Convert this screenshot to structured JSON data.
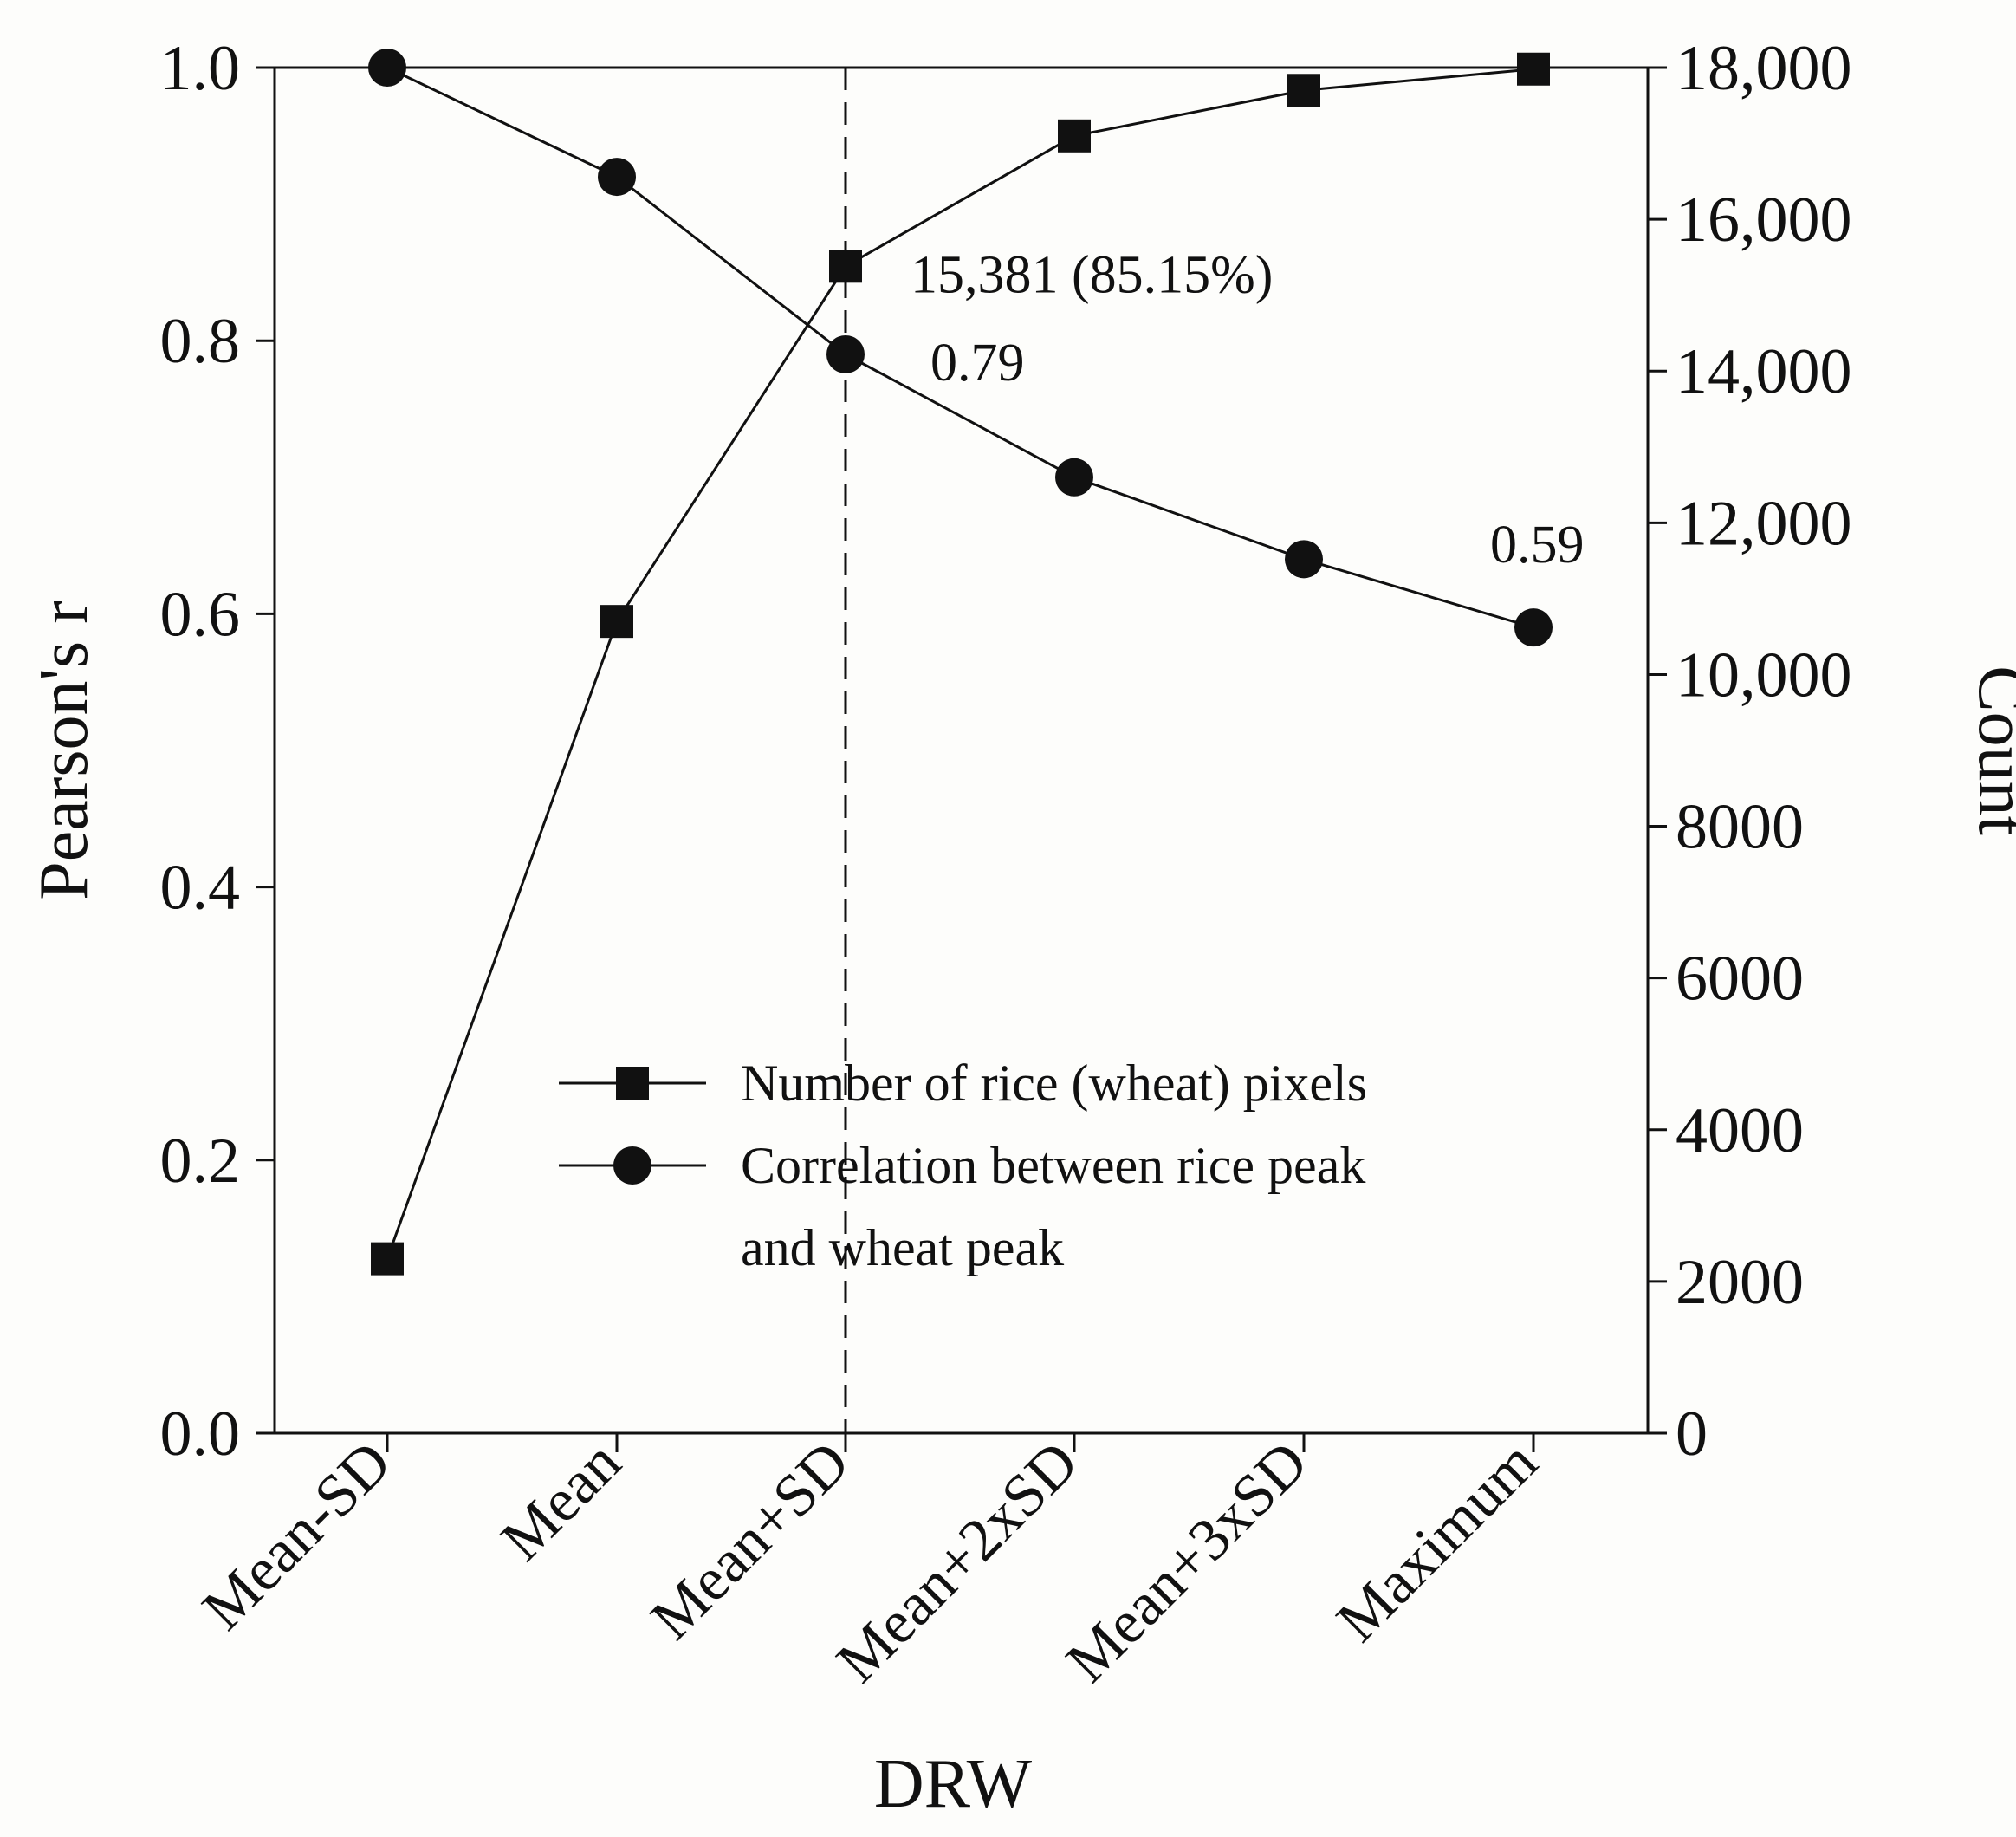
{
  "chart_data": {
    "type": "line",
    "title": "",
    "xlabel": "DRW",
    "ylabel": "Pearson's r",
    "y2label": "Count",
    "categories": [
      "Mean-SD",
      "Mean",
      "Mean+SD",
      "Mean+2xSD",
      "Mean+3xSD",
      "Maximum"
    ],
    "ylim": [
      0,
      1
    ],
    "y2lim": [
      0,
      18000
    ],
    "y_ticks": [
      "0.0",
      "0.2",
      "0.4",
      "0.6",
      "0.8",
      "1.0"
    ],
    "y2_ticks": [
      "0",
      "2000",
      "4000",
      "6000",
      "8000",
      "10,000",
      "12,000",
      "14,000",
      "16,000",
      "18,000"
    ],
    "series": [
      {
        "name": "Number of rice (wheat) pixels",
        "axis": "right",
        "marker": "square",
        "values": [
          2300,
          10700,
          15381,
          17100,
          17700,
          17980
        ]
      },
      {
        "name": "Correlation between rice peak and wheat peak",
        "axis": "left",
        "marker": "circle",
        "values": [
          1.0,
          0.92,
          0.79,
          0.7,
          0.64,
          0.59
        ]
      }
    ],
    "reference_line": {
      "category": "Mean+SD",
      "style": "dashed"
    },
    "annotations": [
      {
        "text": "15,381 (85.15%)",
        "category": "Mean+SD",
        "series": "Number of rice (wheat) pixels"
      },
      {
        "text": "0.79",
        "category": "Mean+SD",
        "series": "Correlation between rice peak and wheat peak"
      },
      {
        "text": "0.59",
        "category": "Maximum",
        "series": "Correlation between rice peak and wheat peak"
      }
    ],
    "legend": {
      "position": "center-bottom",
      "entries": [
        {
          "lines": [
            "Number of rice (wheat) pixels"
          ]
        },
        {
          "lines": [
            "Correlation between rice peak",
            "and wheat peak"
          ]
        }
      ]
    },
    "grid": false
  }
}
